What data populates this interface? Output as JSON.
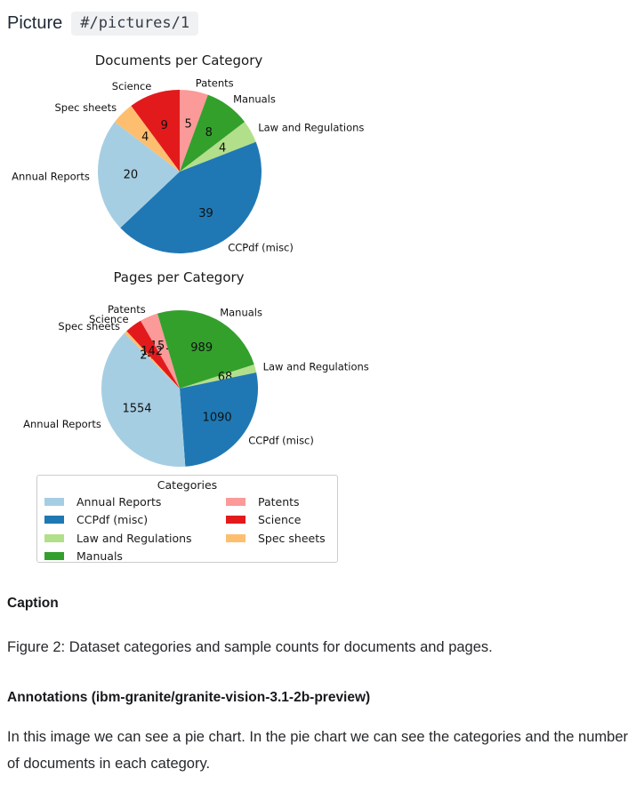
{
  "header": {
    "title": "Picture",
    "path_badge": "#/pictures/1"
  },
  "chart_data": [
    {
      "type": "pie",
      "title": "Documents per Category",
      "start_angle_deg": 90,
      "direction": "clockwise",
      "slices": [
        {
          "label": "Patents",
          "value": 5,
          "color": "#fb9a99"
        },
        {
          "label": "Manuals",
          "value": 8,
          "color": "#33a02c"
        },
        {
          "label": "Law and Regulations",
          "value": 4,
          "color": "#b2df8a"
        },
        {
          "label": "CCPdf (misc)",
          "value": 39,
          "color": "#1f78b4"
        },
        {
          "label": "Annual Reports",
          "value": 20,
          "color": "#a6cee3"
        },
        {
          "label": "Spec sheets",
          "value": 4,
          "color": "#fdbf6f"
        },
        {
          "label": "Science",
          "value": 9,
          "color": "#e31a1c"
        }
      ]
    },
    {
      "type": "pie",
      "title": "Pages per Category",
      "start_angle_deg": 120,
      "direction": "clockwise",
      "slices": [
        {
          "label": "Patents",
          "value": 151,
          "color": "#fb9a99"
        },
        {
          "label": "Manuals",
          "value": 989,
          "color": "#33a02c"
        },
        {
          "label": "Law and Regulations",
          "value": 68,
          "color": "#b2df8a"
        },
        {
          "label": "CCPdf (misc)",
          "value": 1090,
          "color": "#1f78b4"
        },
        {
          "label": "Annual Reports",
          "value": 1554,
          "color": "#a6cee3"
        },
        {
          "label": "Spec sheets",
          "value": 24,
          "color": "#fdbf6f"
        },
        {
          "label": "Science",
          "value": 142,
          "color": "#e31a1c"
        }
      ]
    }
  ],
  "legend": {
    "title": "Categories",
    "items": [
      {
        "label": "Annual Reports",
        "color": "#a6cee3"
      },
      {
        "label": "CCPdf (misc)",
        "color": "#1f78b4"
      },
      {
        "label": "Law and Regulations",
        "color": "#b2df8a"
      },
      {
        "label": "Manuals",
        "color": "#33a02c"
      },
      {
        "label": "Patents",
        "color": "#fb9a99"
      },
      {
        "label": "Science",
        "color": "#e31a1c"
      },
      {
        "label": "Spec sheets",
        "color": "#fdbf6f"
      }
    ]
  },
  "caption": {
    "heading": "Caption",
    "text": "Figure 2: Dataset categories and sample counts for documents and pages."
  },
  "annotations": {
    "heading": "Annotations (ibm-granite/granite-vision-3.1-2b-preview)",
    "text": "In this image we can see a pie chart. In the pie chart we can see the categories and the number of documents in each category."
  }
}
